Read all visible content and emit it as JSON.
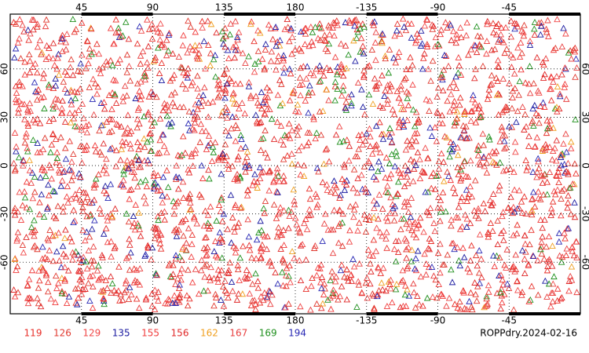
{
  "chart_data": {
    "type": "scatter",
    "title": "ROPPdry.2024-02-16",
    "xlim": [
      0,
      360
    ],
    "ylim": [
      -92,
      94
    ],
    "xticks": [
      45,
      90,
      135,
      180,
      {
        "value": 225,
        "label": "-135"
      },
      {
        "value": 270,
        "label": "-90"
      },
      {
        "value": 315,
        "label": "-45"
      }
    ],
    "yticks": [
      -60,
      -30,
      0,
      30,
      60
    ],
    "grid": true,
    "series": [
      {
        "name": "119",
        "color": "#e8302a"
      },
      {
        "name": "126",
        "color": "#e03a30"
      },
      {
        "name": "129",
        "color": "#f04848"
      },
      {
        "name": "135",
        "color": "#1a1aa0"
      },
      {
        "name": "155",
        "color": "#f03c3c"
      },
      {
        "name": "156",
        "color": "#e02828"
      },
      {
        "name": "162",
        "color": "#f0a020"
      },
      {
        "name": "167",
        "color": "#e84040"
      },
      {
        "name": "169",
        "color": "#20901e"
      },
      {
        "name": "194",
        "color": "#2828b4"
      }
    ]
  }
}
